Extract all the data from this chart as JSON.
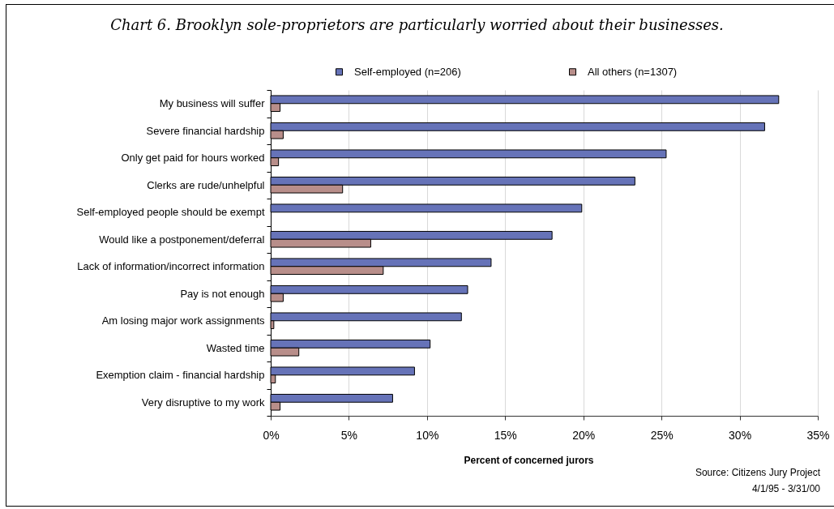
{
  "chart_data": {
    "type": "bar",
    "orientation": "horizontal",
    "title": "Chart 6. Brooklyn sole-proprietors are particularly worried about their businesses.",
    "xlabel": "Percent of concerned jurors",
    "categories": [
      "My business will suffer",
      "Severe financial hardship",
      "Only get paid for hours worked",
      "Clerks are rude/unhelpful",
      "Self-employed people should be exempt",
      "Would like a postponement/deferral",
      "Lack of information/incorrect information",
      "Pay is not enough",
      "Am losing major work assignments",
      "Wasted time",
      "Exemption claim - financial hardship",
      "Very disruptive to my work"
    ],
    "series": [
      {
        "name": "Self-employed (n=206)",
        "color": "#6673b8",
        "values": [
          32.5,
          31.6,
          25.3,
          23.3,
          19.9,
          18.0,
          14.1,
          12.6,
          12.2,
          10.2,
          9.2,
          7.8
        ]
      },
      {
        "name": "All others (n=1307)",
        "color": "#b88e8a",
        "values": [
          0.6,
          0.8,
          0.5,
          4.6,
          null,
          6.4,
          7.2,
          0.8,
          0.2,
          1.8,
          0.3,
          0.6
        ]
      }
    ],
    "xlim": [
      0,
      35
    ],
    "xticks": [
      {
        "value": 0,
        "label": "0%"
      },
      {
        "value": 5,
        "label": "5%"
      },
      {
        "value": 10,
        "label": "10%"
      },
      {
        "value": 15,
        "label": "15%"
      },
      {
        "value": 20,
        "label": "20%"
      },
      {
        "value": 25,
        "label": "25%"
      },
      {
        "value": 30,
        "label": "30%"
      },
      {
        "value": 35,
        "label": "35%"
      }
    ],
    "grid": "x",
    "legend": "top",
    "annotations": [
      "Source: Citizens Jury Project",
      "4/1/95 - 3/31/00"
    ]
  }
}
